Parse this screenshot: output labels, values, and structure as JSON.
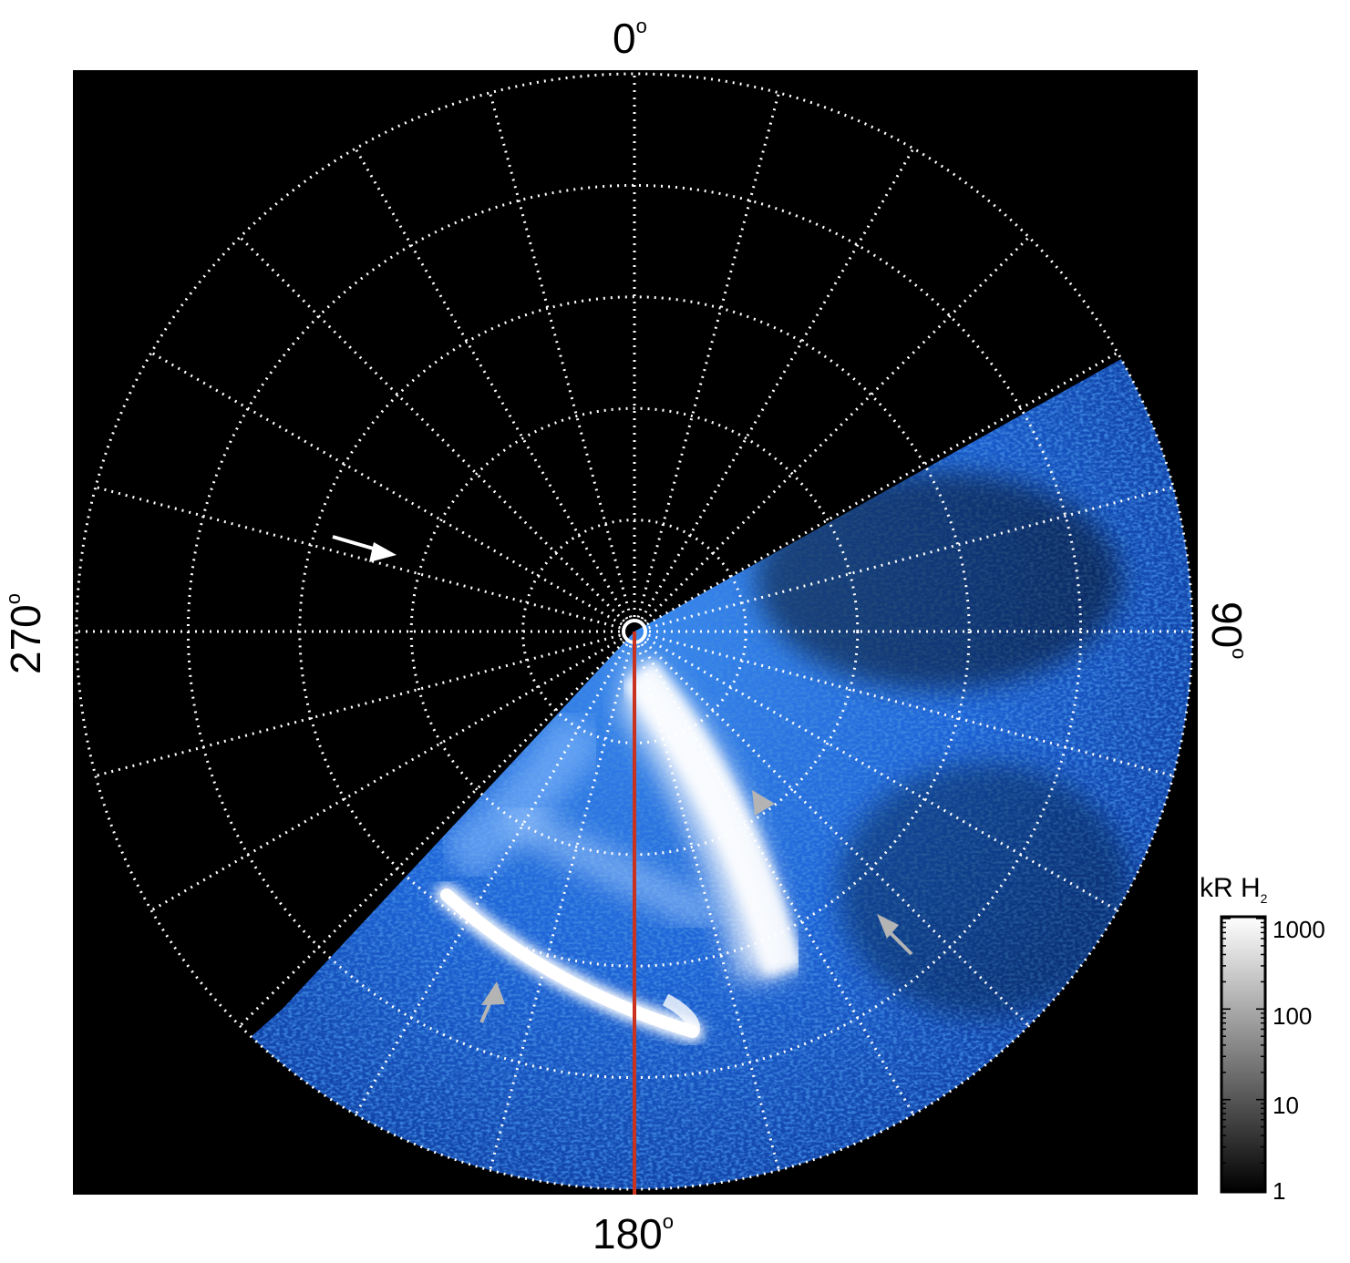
{
  "figure": {
    "axis_labels": {
      "top": "0",
      "bottom": "180",
      "left": "270",
      "right": "90",
      "degree_symbol": "o"
    },
    "colorbar": {
      "title_main": "kR H",
      "title_sub": "2",
      "scale": "log",
      "tick_labels": [
        "1",
        "10",
        "100",
        "1000"
      ],
      "colormap": [
        "#000000",
        "#ffffff"
      ]
    },
    "image_colors": {
      "background": "#000000",
      "emission_low": "#0a3a8c",
      "emission_mid": "#1f6fe0",
      "emission_high": "#ffffff",
      "grid": "#ffffff",
      "meridian_line": "#c8321e",
      "annotation_arrow_white": "#ffffff",
      "annotation_arrow_gray": "#b4b4b4"
    },
    "polar_grid": {
      "meridian_spacing_deg": 15,
      "ring_count": 5
    },
    "annotations": [
      {
        "type": "arrow",
        "color": "white",
        "icon": "arrow-icon"
      },
      {
        "type": "arrowhead",
        "color": "gray",
        "icon": "triangle-icon"
      },
      {
        "type": "arrow",
        "color": "gray",
        "icon": "arrow-icon"
      },
      {
        "type": "arrow",
        "color": "gray",
        "icon": "arrow-icon"
      }
    ]
  }
}
